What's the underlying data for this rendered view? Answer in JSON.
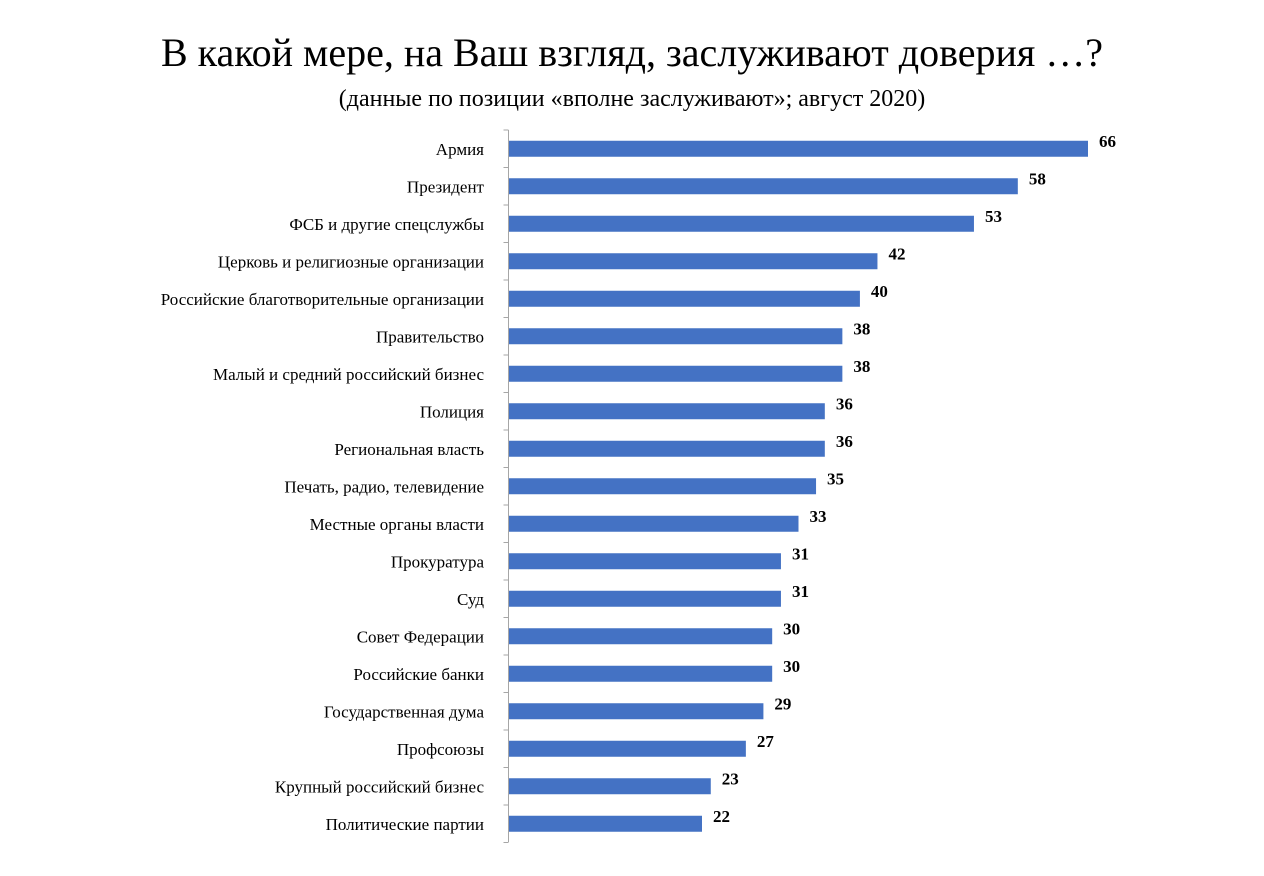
{
  "chart_data": {
    "type": "bar",
    "orientation": "horizontal",
    "title": "В какой мере, на Ваш взгляд, заслуживают доверия …?",
    "subtitle": "(данные по позиции «вполне заслуживают»;  август 2020)",
    "categories": [
      "Армия",
      "Президент",
      "ФСБ и другие спецслужбы",
      "Церковь и религиозные организации",
      "Российские благотворительные организации",
      "Правительство",
      "Малый и средний российский бизнес",
      "Полиция",
      "Региональная власть",
      "Печать, радио, телевидение",
      "Местные органы власти",
      "Прокуратура",
      "Суд",
      "Совет Федерации",
      "Российские банки",
      "Государственная дума",
      "Профсоюзы",
      "Крупный российский бизнес",
      "Политические партии"
    ],
    "values": [
      66,
      58,
      53,
      42,
      40,
      38,
      38,
      36,
      36,
      35,
      33,
      31,
      31,
      30,
      30,
      29,
      27,
      23,
      22
    ],
    "value_labels": [
      "66",
      "58",
      "53",
      "42",
      "40",
      "38",
      "38",
      "36",
      "36",
      "35",
      "33",
      "31",
      "31",
      "30",
      "30",
      "29",
      "27",
      "23",
      "22"
    ],
    "xlim": [
      0,
      66
    ],
    "bar_color": "#4472C4",
    "grid": false,
    "legend": "none",
    "xlabel": "",
    "ylabel": ""
  }
}
